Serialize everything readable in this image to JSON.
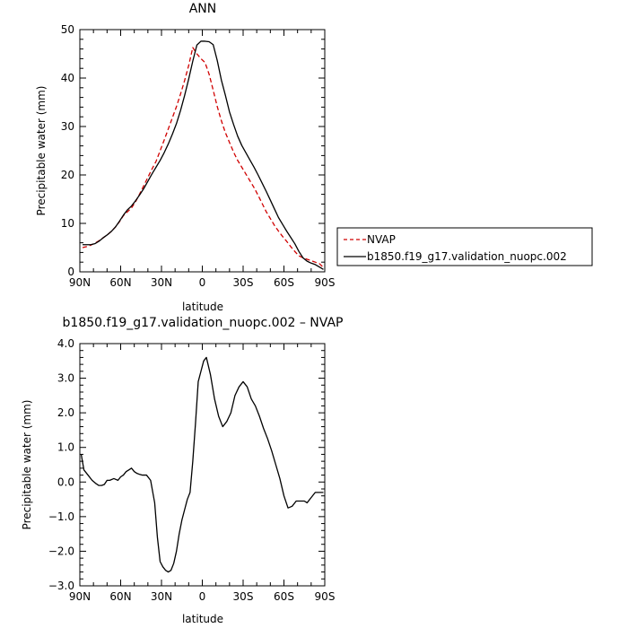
{
  "chart_data": [
    {
      "type": "line",
      "title": "ANN",
      "xlabel": "latitude",
      "ylabel": "Precipitable water (mm)",
      "xlim": [
        90,
        -90
      ],
      "ylim": [
        0,
        50
      ],
      "xticks": [
        90,
        60,
        30,
        0,
        -30,
        -60,
        -90
      ],
      "xtick_labels": [
        "90N",
        "60N",
        "30N",
        "0",
        "30S",
        "60S",
        "90S"
      ],
      "yticks": [
        0,
        10,
        20,
        30,
        40,
        50
      ],
      "ytick_labels": [
        "0",
        "10",
        "20",
        "30",
        "40",
        "50"
      ],
      "legend_position": "right",
      "grid": false,
      "series": [
        {
          "name": "NVAP",
          "color": "#d00000",
          "dash": "dashed",
          "x": [
            88,
            85,
            82,
            79,
            76,
            73,
            70,
            67,
            64,
            61,
            58,
            55,
            52,
            49,
            46,
            43,
            40,
            37,
            34,
            31,
            28,
            25,
            22,
            19,
            16,
            13,
            10,
            7,
            4,
            1,
            -2,
            -5,
            -8,
            -11,
            -14,
            -17,
            -20,
            -23,
            -26,
            -29,
            -32,
            -35,
            -38,
            -41,
            -44,
            -47,
            -50,
            -53,
            -56,
            -59,
            -62,
            -65,
            -68,
            -71,
            -74,
            -77,
            -80,
            -83,
            -86,
            -89
          ],
          "values": [
            5.0,
            5.2,
            5.5,
            5.9,
            6.4,
            7.0,
            7.6,
            8.3,
            9.2,
            10.3,
            11.6,
            12.4,
            13.2,
            14.5,
            16.1,
            17.8,
            19.5,
            21.2,
            22.8,
            25.0,
            27.2,
            29.5,
            31.8,
            34.1,
            36.7,
            39.5,
            42.6,
            46.3,
            45.0,
            44.0,
            43.2,
            40.8,
            37.5,
            34.1,
            31.2,
            28.7,
            26.7,
            24.7,
            23.0,
            21.6,
            20.2,
            18.8,
            17.4,
            15.8,
            14.1,
            12.4,
            11.0,
            9.6,
            8.4,
            7.3,
            6.3,
            5.2,
            4.2,
            3.3,
            2.9,
            2.6,
            2.3,
            2.0,
            1.7,
            0.9
          ]
        },
        {
          "name": "b1850.f19_g17.validation_nuopc.002",
          "color": "#000000",
          "dash": "solid",
          "x": [
            88,
            85,
            82,
            79,
            76,
            73,
            70,
            67,
            64,
            61,
            58,
            55,
            52,
            49,
            46,
            43,
            40,
            37,
            34,
            31,
            28,
            25,
            22,
            19,
            16,
            13,
            10,
            7,
            4,
            1,
            -2,
            -5,
            -8,
            -11,
            -14,
            -17,
            -20,
            -23,
            -26,
            -29,
            -32,
            -35,
            -38,
            -41,
            -44,
            -47,
            -50,
            -53,
            -56,
            -59,
            -62,
            -65,
            -68,
            -71,
            -74,
            -77,
            -80,
            -83,
            -86,
            -89
          ],
          "values": [
            5.6,
            5.6,
            5.6,
            5.8,
            6.3,
            7.0,
            7.6,
            8.3,
            9.2,
            10.4,
            11.7,
            12.8,
            13.6,
            14.7,
            15.9,
            17.2,
            18.7,
            20.2,
            21.6,
            23.0,
            24.6,
            26.4,
            28.4,
            30.6,
            33.3,
            36.4,
            39.8,
            43.5,
            46.8,
            47.6,
            47.6,
            47.5,
            46.9,
            43.6,
            39.6,
            36.4,
            33.0,
            30.4,
            28.0,
            26.1,
            24.6,
            23.1,
            21.6,
            20.0,
            18.3,
            16.6,
            14.8,
            13.0,
            11.2,
            9.8,
            8.4,
            7.1,
            5.8,
            4.2,
            2.9,
            2.2,
            1.8,
            1.5,
            1.0,
            0.5
          ]
        }
      ]
    },
    {
      "type": "line",
      "title": "b1850.f19_g17.validation_nuopc.002 – NVAP",
      "xlabel": "latitude",
      "ylabel": "Precipitable water (mm)",
      "xlim": [
        90,
        -90
      ],
      "ylim": [
        -3.0,
        4.0
      ],
      "xticks": [
        90,
        60,
        30,
        0,
        -30,
        -60,
        -90
      ],
      "xtick_labels": [
        "90N",
        "60N",
        "30N",
        "0",
        "30S",
        "60S",
        "90S"
      ],
      "yticks": [
        -3,
        -2,
        -1,
        0,
        1,
        2,
        3,
        4
      ],
      "ytick_labels": [
        "−3.0",
        "−2.0",
        "−1.0",
        "0.0",
        "1.0",
        "2.0",
        "3.0",
        "4.0"
      ],
      "grid": false,
      "series": [
        {
          "color": "#000000",
          "dash": "solid",
          "x": [
            89,
            87,
            84,
            81,
            78,
            76,
            74,
            72,
            70,
            68,
            65,
            62,
            60,
            58,
            56,
            54,
            52,
            50,
            48,
            46,
            44,
            41,
            38,
            35,
            33,
            31,
            29,
            27,
            25,
            23,
            21,
            19,
            17,
            15,
            13,
            11,
            9,
            7,
            5,
            3,
            1,
            -1,
            -3,
            -6,
            -9,
            -12,
            -15,
            -18,
            -21,
            -24,
            -27,
            -30,
            -33,
            -36,
            -39,
            -42,
            -45,
            -48,
            -51,
            -54,
            -57,
            -60,
            -63,
            -66,
            -69,
            -71,
            -73,
            -75,
            -77,
            -80,
            -83,
            -86,
            -89
          ],
          "values": [
            0.8,
            0.35,
            0.2,
            0.05,
            -0.05,
            -0.1,
            -0.1,
            -0.07,
            0.05,
            0.05,
            0.1,
            0.05,
            0.15,
            0.2,
            0.3,
            0.35,
            0.4,
            0.3,
            0.25,
            0.22,
            0.2,
            0.2,
            0.05,
            -0.6,
            -1.6,
            -2.3,
            -2.45,
            -2.55,
            -2.6,
            -2.55,
            -2.35,
            -2.0,
            -1.5,
            -1.1,
            -0.8,
            -0.5,
            -0.3,
            0.6,
            1.7,
            2.9,
            3.2,
            3.5,
            3.6,
            3.1,
            2.4,
            1.9,
            1.6,
            1.75,
            2.0,
            2.5,
            2.75,
            2.9,
            2.75,
            2.4,
            2.2,
            1.9,
            1.55,
            1.25,
            0.9,
            0.5,
            0.1,
            -0.4,
            -0.75,
            -0.7,
            -0.55,
            -0.55,
            -0.55,
            -0.55,
            -0.6,
            -0.45,
            -0.3,
            -0.3,
            -0.3
          ]
        }
      ]
    }
  ]
}
